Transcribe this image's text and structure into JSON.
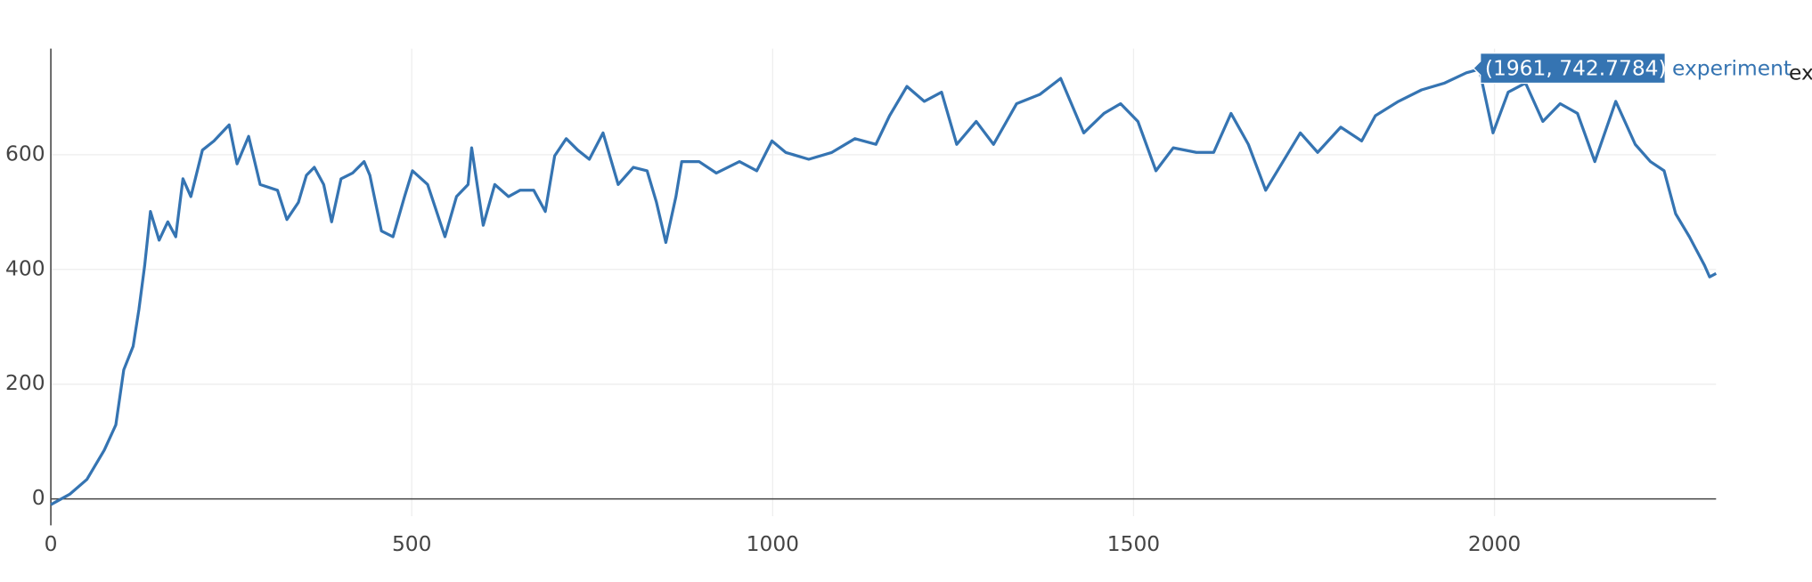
{
  "chart_data": {
    "type": "line",
    "series": [
      {
        "name": "experiment",
        "color": "#3574b2",
        "x": [
          0,
          26,
          50,
          74,
          90,
          101,
          114,
          122,
          130,
          138,
          150,
          162,
          173,
          183,
          194,
          210,
          226,
          247,
          258,
          274,
          290,
          314,
          327,
          343,
          354,
          365,
          378,
          389,
          402,
          418,
          434,
          442,
          458,
          474,
          490,
          501,
          522,
          546,
          562,
          578,
          583,
          599,
          615,
          634,
          650,
          669,
          685,
          698,
          714,
          730,
          746,
          765,
          786,
          807,
          826,
          839,
          852,
          866,
          874,
          898,
          922,
          954,
          978,
          999,
          1018,
          1050,
          1082,
          1114,
          1143,
          1162,
          1186,
          1210,
          1234,
          1255,
          1282,
          1306,
          1338,
          1370,
          1399,
          1431,
          1459,
          1482,
          1506,
          1531,
          1555,
          1587,
          1611,
          1635,
          1659,
          1683,
          1707,
          1731,
          1755,
          1787,
          1816,
          1835,
          1867,
          1899,
          1931,
          1961,
          1979,
          1998,
          2019,
          2043,
          2067,
          2091,
          2115,
          2139,
          2168,
          2195,
          2216,
          2235,
          2251,
          2270,
          2291,
          2298,
          2307
        ],
        "values": [
          -10,
          8,
          34,
          85,
          129,
          225,
          266,
          330,
          407,
          501,
          451,
          483,
          457,
          558,
          527,
          608,
          624,
          652,
          584,
          632,
          548,
          538,
          487,
          517,
          564,
          578,
          548,
          483,
          558,
          568,
          588,
          564,
          467,
          457,
          527,
          572,
          548,
          457,
          527,
          548,
          612,
          477,
          548,
          527,
          538,
          538,
          501,
          598,
          628,
          608,
          592,
          638,
          548,
          578,
          572,
          517,
          447,
          527,
          588,
          588,
          568,
          588,
          572,
          624,
          604,
          592,
          604,
          628,
          618,
          668,
          719,
          693,
          709,
          618,
          658,
          618,
          689,
          705,
          733,
          638,
          672,
          689,
          658,
          572,
          612,
          604,
          604,
          672,
          618,
          538,
          588,
          638,
          604,
          648,
          624,
          668,
          693,
          713,
          725,
          742.7784,
          749,
          638,
          709,
          725,
          658,
          689,
          672,
          588,
          693,
          618,
          588,
          572,
          497,
          457,
          407,
          387,
          393
        ]
      }
    ],
    "xlim": [
      0,
      2307
    ],
    "ylim": [
      -30,
      785
    ],
    "xticks": [
      0,
      500,
      1000,
      1500,
      2000
    ],
    "yticks": [
      0,
      200,
      400,
      600
    ],
    "grid": true,
    "hover_label": "(1961, 742.7784)"
  }
}
